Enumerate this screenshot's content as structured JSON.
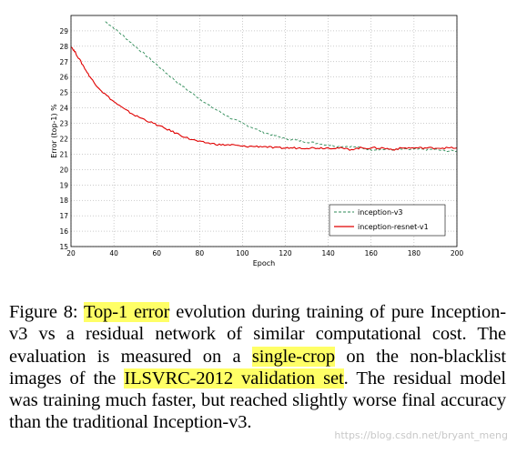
{
  "chart_data": {
    "type": "line",
    "title": "",
    "xlabel": "Epoch",
    "ylabel": "Error (top-1) %",
    "xlim": [
      20,
      200
    ],
    "ylim": [
      15,
      30
    ],
    "xticks": [
      20,
      40,
      60,
      80,
      100,
      120,
      140,
      160,
      180,
      200
    ],
    "yticks": [
      15,
      16,
      17,
      18,
      19,
      20,
      21,
      22,
      23,
      24,
      25,
      26,
      27,
      28,
      29
    ],
    "grid": true,
    "legend_position": "lower-right",
    "series": [
      {
        "name": "inception-v3",
        "color": "#2e8b57",
        "style": "dashed",
        "x": [
          36,
          40,
          45,
          50,
          55,
          60,
          65,
          70,
          75,
          80,
          85,
          90,
          95,
          100,
          105,
          110,
          115,
          120,
          125,
          130,
          135,
          140,
          145,
          150,
          155,
          160,
          165,
          170,
          175,
          180,
          185,
          190,
          195,
          200
        ],
        "y": [
          29.6,
          29.2,
          28.6,
          28.0,
          27.4,
          26.8,
          26.2,
          25.6,
          25.1,
          24.6,
          24.1,
          23.7,
          23.3,
          23.0,
          22.7,
          22.4,
          22.2,
          22.0,
          21.9,
          21.8,
          21.7,
          21.6,
          21.5,
          21.5,
          21.4,
          21.3,
          21.3,
          21.3,
          21.3,
          21.3,
          21.3,
          21.3,
          21.2,
          21.2
        ]
      },
      {
        "name": "inception-resnet-v1",
        "color": "#e00000",
        "style": "solid",
        "x": [
          20,
          22,
          25,
          28,
          31,
          35,
          40,
          45,
          50,
          55,
          60,
          65,
          70,
          75,
          80,
          85,
          90,
          95,
          100,
          105,
          110,
          115,
          120,
          125,
          130,
          135,
          140,
          145,
          150,
          155,
          160,
          165,
          170,
          175,
          180,
          185,
          190,
          195,
          200
        ],
        "y": [
          28.0,
          27.6,
          26.9,
          26.2,
          25.6,
          25.0,
          24.4,
          23.9,
          23.5,
          23.2,
          22.9,
          22.6,
          22.3,
          22.0,
          21.8,
          21.7,
          21.6,
          21.6,
          21.5,
          21.5,
          21.5,
          21.4,
          21.4,
          21.4,
          21.4,
          21.4,
          21.4,
          21.4,
          21.3,
          21.4,
          21.4,
          21.4,
          21.3,
          21.4,
          21.4,
          21.4,
          21.4,
          21.4,
          21.4
        ]
      }
    ]
  },
  "caption": {
    "prefix": "Figure 8: ",
    "h1": "Top-1 error",
    "part1": " evolution during training of pure Inception-v3 vs a residual network of similar computational cost. The evaluation is measured on a ",
    "h2": "single-crop",
    "part2": " on the non-blacklist images of the ",
    "h3": "ILSVRC-2012 validation set",
    "part3": ". The residual model was training much faster, but reached slightly worse final accuracy than the traditional Inception-v3."
  },
  "watermark": "https://blog.csdn.net/bryant_meng"
}
